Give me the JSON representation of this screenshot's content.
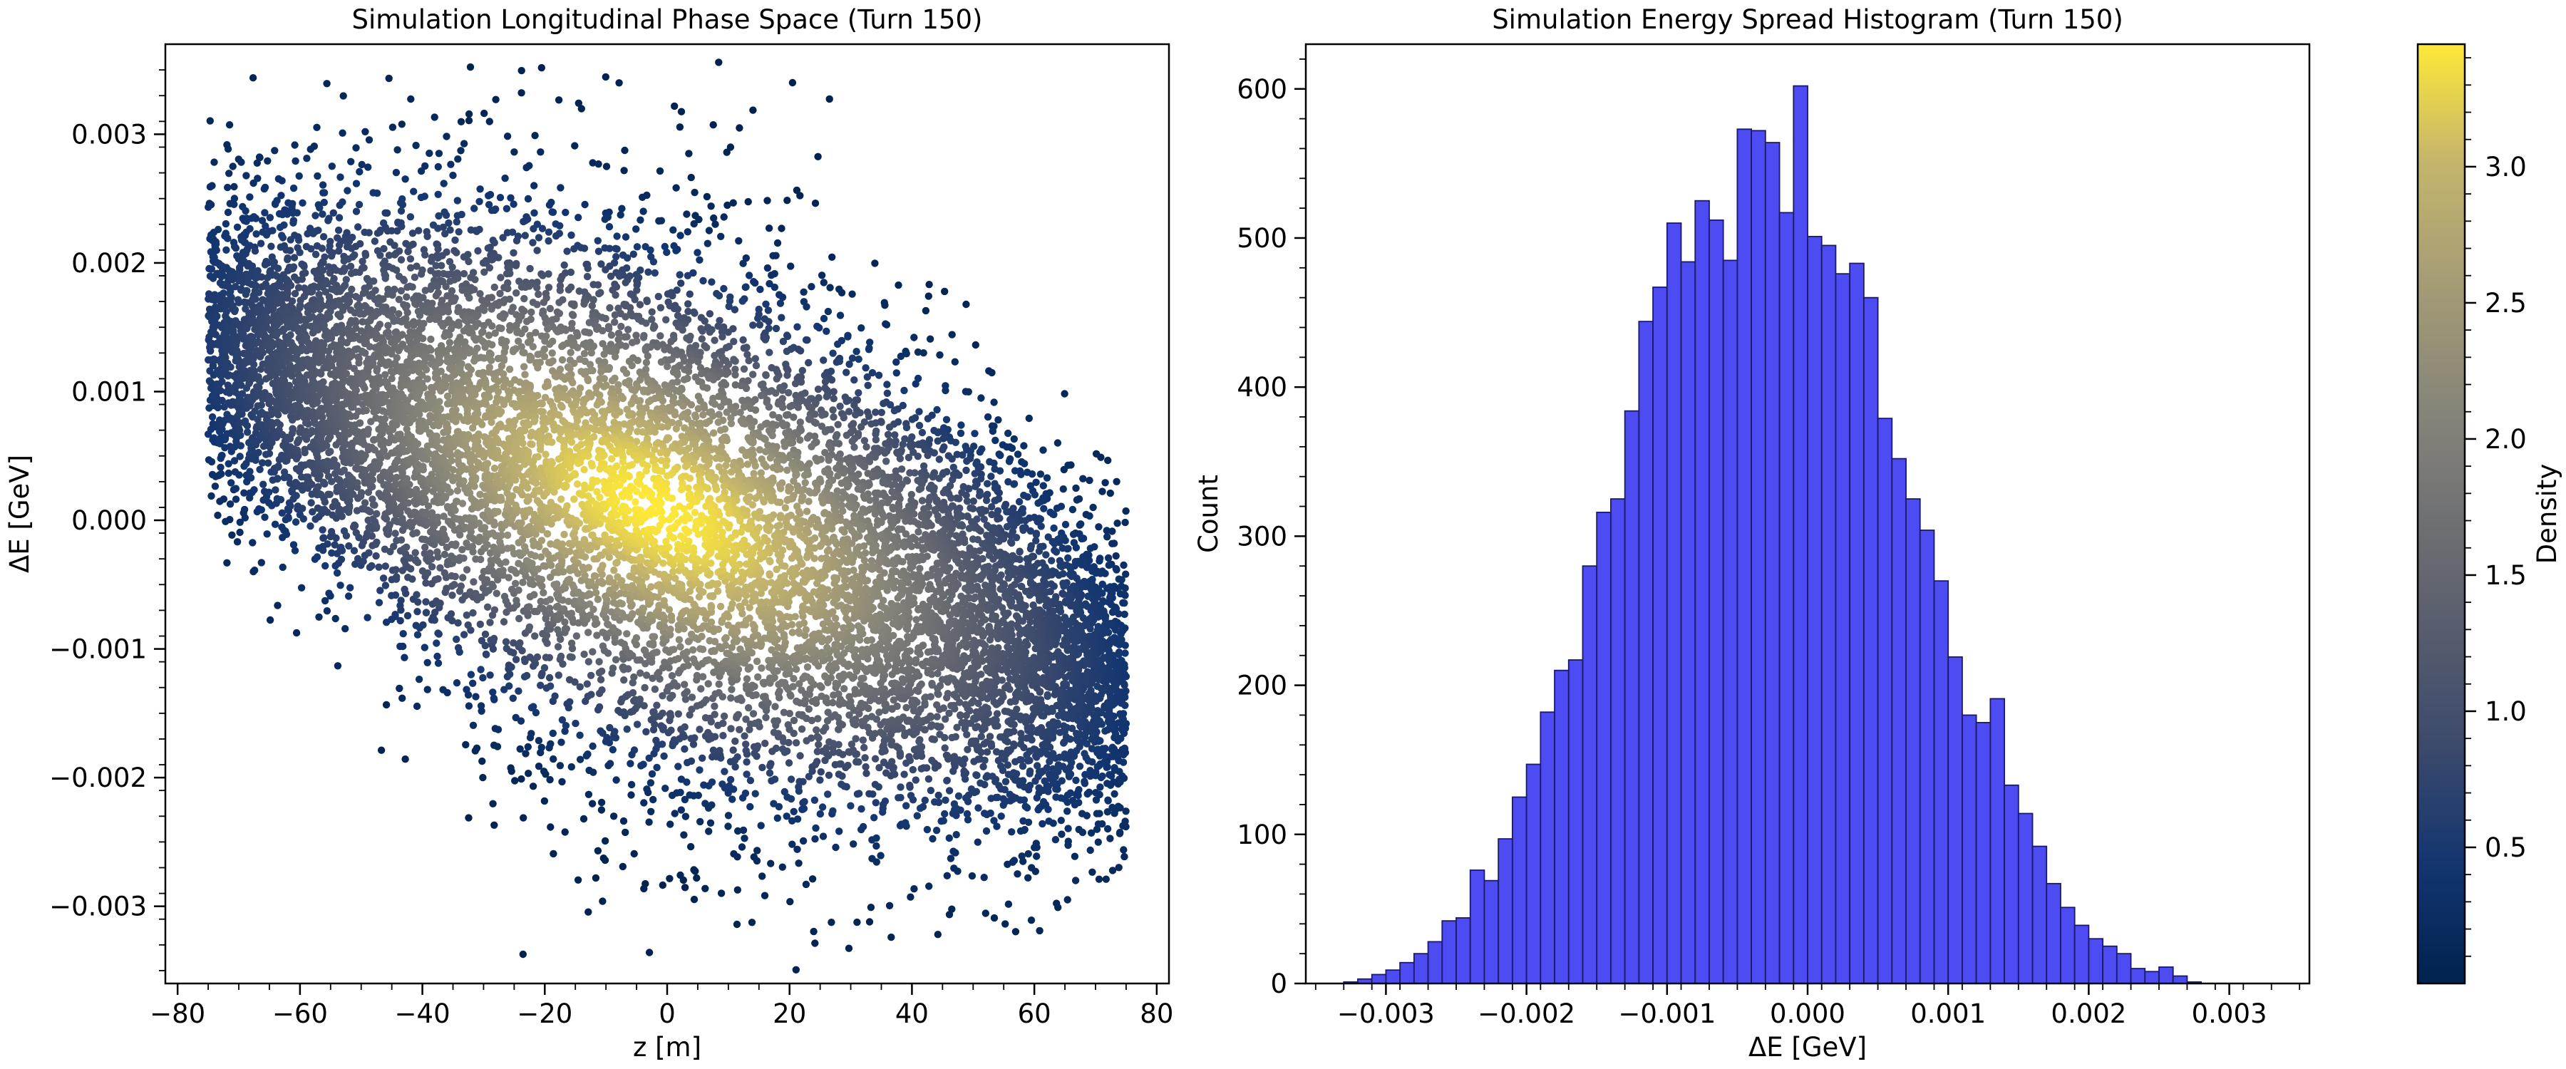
{
  "chart_data": [
    {
      "type": "scatter",
      "title": "Simulation Longitudinal Phase Space (Turn 150)",
      "xlabel": "z [m]",
      "ylabel": "ΔE [GeV]",
      "xlim": [
        -82,
        82
      ],
      "ylim": [
        -0.0036,
        0.0037
      ],
      "xticks": [
        -80,
        -60,
        -40,
        -20,
        0,
        20,
        40,
        60,
        80
      ],
      "xtick_labels": [
        "−80",
        "−60",
        "−40",
        "−20",
        "0",
        "20",
        "40",
        "60",
        "80"
      ],
      "yticks": [
        -0.003,
        -0.002,
        -0.001,
        0.0,
        0.001,
        0.002,
        0.003
      ],
      "ytick_labels": [
        "−0.003",
        "−0.002",
        "−0.001",
        "0.000",
        "0.001",
        "0.002",
        "0.003"
      ],
      "distribution": {
        "n_points": 12000,
        "z_range": [
          -75,
          75
        ],
        "center_z": -2,
        "center_dE": 0.0001,
        "dE_slope_per_m": -1.8e-05,
        "dE_sigma": 0.001
      },
      "colormap": "cividis",
      "grid": false
    },
    {
      "type": "bar",
      "title": "Simulation Energy Spread Histogram (Turn 150)",
      "xlabel": "ΔE [GeV]",
      "ylabel": "Count",
      "xlim": [
        -0.00357,
        0.00357
      ],
      "ylim": [
        0,
        630
      ],
      "bin_start": -0.0033,
      "bin_width": 0.0001,
      "values": [
        1,
        3,
        6,
        9,
        14,
        20,
        28,
        42,
        44,
        76,
        69,
        97,
        125,
        147,
        182,
        210,
        217,
        280,
        316,
        325,
        384,
        444,
        467,
        510,
        484,
        525,
        512,
        485,
        573,
        572,
        564,
        517,
        602,
        501,
        495,
        476,
        483,
        460,
        379,
        352,
        325,
        304,
        270,
        219,
        180,
        175,
        191,
        133,
        114,
        92,
        67,
        51,
        39,
        30,
        25,
        20,
        10,
        8,
        11,
        5,
        1
      ],
      "bar_color": "#4c4cf2",
      "edge_color": "#1a1a66",
      "xticks": [
        -0.003,
        -0.002,
        -0.001,
        0.0,
        0.001,
        0.002,
        0.003
      ],
      "xtick_labels": [
        "−0.003",
        "−0.002",
        "−0.001",
        "0.000",
        "0.001",
        "0.002",
        "0.003"
      ],
      "yticks": [
        0,
        100,
        200,
        300,
        400,
        500,
        600
      ],
      "ytick_labels": [
        "0",
        "100",
        "200",
        "300",
        "400",
        "500",
        "600"
      ],
      "grid": false
    }
  ],
  "colorbar": {
    "label": "Density",
    "range": [
      0,
      3.45
    ],
    "ticks": [
      0.5,
      1.0,
      1.5,
      2.0,
      2.5,
      3.0
    ],
    "tick_labels": [
      "0.5",
      "1.0",
      "1.5",
      "2.0",
      "2.5",
      "3.0"
    ],
    "colormap": "cividis"
  }
}
